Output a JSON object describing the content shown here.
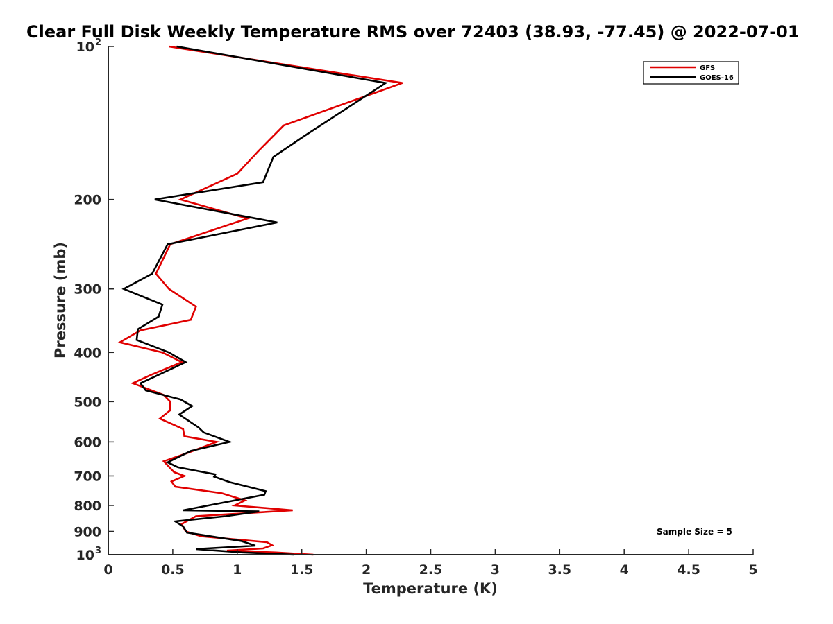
{
  "chart_data": {
    "type": "line",
    "title": "Clear Full Disk Weekly Temperature RMS over 72403 (38.93, -77.45) @ 2022-07-01",
    "xlabel": "Temperature (K)",
    "ylabel": "Pressure (mb)",
    "xlim": [
      0,
      5
    ],
    "ylim": [
      100,
      1000
    ],
    "yscale": "log",
    "y_reversed": true,
    "grid": false,
    "legend_position": "top-right",
    "x_ticks": [
      "0",
      "0.5",
      "1",
      "1.5",
      "2",
      "2.5",
      "3",
      "3.5",
      "4",
      "4.5",
      "5"
    ],
    "y_ticks": [
      {
        "value": 100,
        "label": "10",
        "sup": "2"
      },
      {
        "value": 200,
        "label": "200"
      },
      {
        "value": 300,
        "label": "300"
      },
      {
        "value": 400,
        "label": "400"
      },
      {
        "value": 500,
        "label": "500"
      },
      {
        "value": 600,
        "label": "600"
      },
      {
        "value": 700,
        "label": "700"
      },
      {
        "value": 800,
        "label": "800"
      },
      {
        "value": 900,
        "label": "900"
      },
      {
        "value": 1000,
        "label": "10",
        "sup": "3"
      }
    ],
    "annotation": "Sample Size = 5",
    "series": [
      {
        "name": "GFS",
        "color": "#e00000",
        "points": [
          [
            0.47,
            100
          ],
          [
            2.28,
            118
          ],
          [
            1.36,
            143
          ],
          [
            1.16,
            161
          ],
          [
            1.0,
            178
          ],
          [
            0.56,
            200
          ],
          [
            1.08,
            218
          ],
          [
            0.48,
            245
          ],
          [
            0.37,
            280
          ],
          [
            0.47,
            300
          ],
          [
            0.68,
            325
          ],
          [
            0.64,
            345
          ],
          [
            0.25,
            362
          ],
          [
            0.09,
            382
          ],
          [
            0.42,
            400
          ],
          [
            0.57,
            418
          ],
          [
            0.33,
            443
          ],
          [
            0.19,
            460
          ],
          [
            0.43,
            485
          ],
          [
            0.48,
            500
          ],
          [
            0.48,
            520
          ],
          [
            0.4,
            540
          ],
          [
            0.58,
            566
          ],
          [
            0.59,
            585
          ],
          [
            0.84,
            600
          ],
          [
            0.62,
            630
          ],
          [
            0.43,
            655
          ],
          [
            0.51,
            688
          ],
          [
            0.59,
            700
          ],
          [
            0.49,
            718
          ],
          [
            0.52,
            735
          ],
          [
            0.88,
            757
          ],
          [
            1.06,
            782
          ],
          [
            0.98,
            800
          ],
          [
            1.43,
            818
          ],
          [
            0.68,
            840
          ],
          [
            0.57,
            870
          ],
          [
            0.6,
            900
          ],
          [
            0.72,
            920
          ],
          [
            1.23,
            945
          ],
          [
            1.27,
            958
          ],
          [
            1.2,
            972
          ],
          [
            0.92,
            982
          ],
          [
            1.3,
            990
          ],
          [
            1.59,
            1000
          ]
        ]
      },
      {
        "name": "GOES-16",
        "color": "#000000",
        "points": [
          [
            0.53,
            100
          ],
          [
            2.15,
            118
          ],
          [
            1.52,
            150
          ],
          [
            1.28,
            165
          ],
          [
            1.2,
            185
          ],
          [
            0.36,
            200
          ],
          [
            1.31,
            222
          ],
          [
            0.46,
            245
          ],
          [
            0.34,
            280
          ],
          [
            0.12,
            300
          ],
          [
            0.42,
            322
          ],
          [
            0.39,
            340
          ],
          [
            0.23,
            360
          ],
          [
            0.22,
            378
          ],
          [
            0.47,
            400
          ],
          [
            0.6,
            418
          ],
          [
            0.25,
            460
          ],
          [
            0.29,
            475
          ],
          [
            0.56,
            495
          ],
          [
            0.65,
            510
          ],
          [
            0.55,
            530
          ],
          [
            0.7,
            562
          ],
          [
            0.74,
            575
          ],
          [
            0.94,
            600
          ],
          [
            0.64,
            625
          ],
          [
            0.46,
            658
          ],
          [
            0.54,
            673
          ],
          [
            0.83,
            695
          ],
          [
            0.82,
            702
          ],
          [
            0.94,
            720
          ],
          [
            1.22,
            750
          ],
          [
            1.21,
            762
          ],
          [
            0.58,
            818
          ],
          [
            1.17,
            822
          ],
          [
            0.91,
            840
          ],
          [
            0.52,
            860
          ],
          [
            0.58,
            880
          ],
          [
            0.61,
            905
          ],
          [
            1.03,
            940
          ],
          [
            1.14,
            960
          ],
          [
            0.68,
            975
          ],
          [
            1.04,
            990
          ],
          [
            1.44,
            1000
          ]
        ]
      }
    ]
  }
}
